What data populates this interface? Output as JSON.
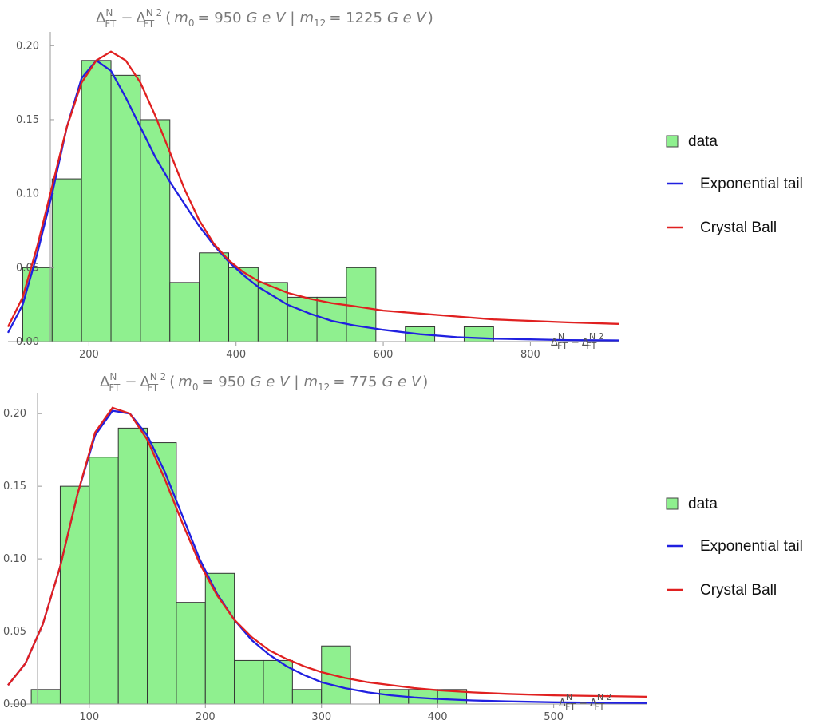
{
  "chart_data": [
    {
      "type": "bar",
      "title_parts": {
        "delta": "Δ",
        "sup_n": "N",
        "sub_ft": "FT",
        "minus": "−",
        "sup_n2": "N 2",
        "open": "(",
        "m0_sym": "m",
        "m0_sub": "0",
        "m0_val": "= 950",
        "unit": "G e V",
        "sep": "|",
        "m12_sym": "m",
        "m12_sub": "12",
        "m12_val": "= 1225",
        "close": ")"
      },
      "xlabel_parts": {
        "delta": "Δ",
        "sup_n": "N",
        "sub_ft": "FT",
        "minus": "−",
        "sup_n2": "N 2"
      },
      "xlim": [
        90,
        920
      ],
      "ylim": [
        0,
        0.205
      ],
      "xticks": [
        200,
        400,
        600,
        800
      ],
      "yticks": [
        "0.00",
        "0.05",
        "0.10",
        "0.15",
        "0.20"
      ],
      "bins": [
        {
          "x0": 110,
          "x1": 150,
          "value": 0.05
        },
        {
          "x0": 150,
          "x1": 190,
          "value": 0.11
        },
        {
          "x0": 190,
          "x1": 230,
          "value": 0.19
        },
        {
          "x0": 230,
          "x1": 270,
          "value": 0.18
        },
        {
          "x0": 270,
          "x1": 310,
          "value": 0.15
        },
        {
          "x0": 310,
          "x1": 350,
          "value": 0.04
        },
        {
          "x0": 350,
          "x1": 390,
          "value": 0.06
        },
        {
          "x0": 390,
          "x1": 430,
          "value": 0.05
        },
        {
          "x0": 430,
          "x1": 470,
          "value": 0.04
        },
        {
          "x0": 470,
          "x1": 510,
          "value": 0.03
        },
        {
          "x0": 510,
          "x1": 550,
          "value": 0.03
        },
        {
          "x0": 550,
          "x1": 590,
          "value": 0.05
        },
        {
          "x0": 590,
          "x1": 630,
          "value": 0.0
        },
        {
          "x0": 630,
          "x1": 670,
          "value": 0.01
        },
        {
          "x0": 670,
          "x1": 710,
          "value": 0.0
        },
        {
          "x0": 710,
          "x1": 750,
          "value": 0.01
        }
      ],
      "series": [
        {
          "name": "Exponential tail",
          "color": "#2020e0",
          "points": [
            [
              90,
              0.006
            ],
            [
              110,
              0.025
            ],
            [
              130,
              0.06
            ],
            [
              150,
              0.1
            ],
            [
              170,
              0.145
            ],
            [
              190,
              0.178
            ],
            [
              210,
              0.19
            ],
            [
              230,
              0.183
            ],
            [
              250,
              0.165
            ],
            [
              270,
              0.145
            ],
            [
              290,
              0.125
            ],
            [
              310,
              0.108
            ],
            [
              330,
              0.093
            ],
            [
              350,
              0.078
            ],
            [
              370,
              0.065
            ],
            [
              390,
              0.054
            ],
            [
              410,
              0.045
            ],
            [
              430,
              0.037
            ],
            [
              450,
              0.031
            ],
            [
              470,
              0.025
            ],
            [
              500,
              0.019
            ],
            [
              530,
              0.014
            ],
            [
              560,
              0.011
            ],
            [
              600,
              0.008
            ],
            [
              650,
              0.005
            ],
            [
              700,
              0.003
            ],
            [
              750,
              0.002
            ],
            [
              800,
              0.0015
            ],
            [
              850,
              0.001
            ],
            [
              920,
              0.0008
            ]
          ]
        },
        {
          "name": "Crystal Ball",
          "color": "#e02020",
          "points": [
            [
              90,
              0.01
            ],
            [
              110,
              0.03
            ],
            [
              130,
              0.065
            ],
            [
              150,
              0.105
            ],
            [
              170,
              0.145
            ],
            [
              190,
              0.175
            ],
            [
              210,
              0.19
            ],
            [
              230,
              0.196
            ],
            [
              250,
              0.19
            ],
            [
              270,
              0.175
            ],
            [
              290,
              0.153
            ],
            [
              310,
              0.128
            ],
            [
              330,
              0.103
            ],
            [
              350,
              0.082
            ],
            [
              370,
              0.066
            ],
            [
              390,
              0.055
            ],
            [
              410,
              0.047
            ],
            [
              430,
              0.041
            ],
            [
              450,
              0.037
            ],
            [
              470,
              0.033
            ],
            [
              500,
              0.029
            ],
            [
              530,
              0.026
            ],
            [
              560,
              0.024
            ],
            [
              600,
              0.021
            ],
            [
              650,
              0.019
            ],
            [
              700,
              0.017
            ],
            [
              750,
              0.015
            ],
            [
              800,
              0.014
            ],
            [
              850,
              0.013
            ],
            [
              920,
              0.012
            ]
          ]
        }
      ],
      "legend": [
        "data",
        "Exponential tail",
        "Crystal Ball"
      ],
      "legend_placement": "right",
      "colors": {
        "bar": "#8ff08f",
        "axis": "#999999"
      }
    },
    {
      "type": "bar",
      "title_parts": {
        "delta": "Δ",
        "sup_n": "N",
        "sub_ft": "FT",
        "minus": "−",
        "sup_n2": "N 2",
        "open": "(",
        "m0_sym": "m",
        "m0_sub": "0",
        "m0_val": "= 950",
        "unit": "G e V",
        "sep": "|",
        "m12_sym": "m",
        "m12_sub": "12",
        "m12_val": "= 775",
        "close": ")"
      },
      "xlabel_parts": {
        "delta": "Δ",
        "sup_n": "N",
        "sub_ft": "FT",
        "minus": "−",
        "sup_n2": "N 2"
      },
      "xlim": [
        30,
        580
      ],
      "ylim": [
        0,
        0.21
      ],
      "xticks": [
        100,
        200,
        300,
        400,
        500
      ],
      "yticks": [
        "0.00",
        "0.05",
        "0.10",
        "0.15",
        "0.20"
      ],
      "bins": [
        {
          "x0": 50,
          "x1": 75,
          "value": 0.01
        },
        {
          "x0": 75,
          "x1": 100,
          "value": 0.15
        },
        {
          "x0": 100,
          "x1": 125,
          "value": 0.17
        },
        {
          "x0": 125,
          "x1": 150,
          "value": 0.19
        },
        {
          "x0": 150,
          "x1": 175,
          "value": 0.18
        },
        {
          "x0": 175,
          "x1": 200,
          "value": 0.07
        },
        {
          "x0": 200,
          "x1": 225,
          "value": 0.09
        },
        {
          "x0": 225,
          "x1": 250,
          "value": 0.03
        },
        {
          "x0": 250,
          "x1": 275,
          "value": 0.03
        },
        {
          "x0": 275,
          "x1": 300,
          "value": 0.01
        },
        {
          "x0": 300,
          "x1": 325,
          "value": 0.04
        },
        {
          "x0": 325,
          "x1": 350,
          "value": 0.0
        },
        {
          "x0": 350,
          "x1": 375,
          "value": 0.01
        },
        {
          "x0": 375,
          "x1": 400,
          "value": 0.01
        },
        {
          "x0": 400,
          "x1": 425,
          "value": 0.01
        }
      ],
      "series": [
        {
          "name": "Exponential tail",
          "color": "#2020e0",
          "points": [
            [
              30,
              0.013
            ],
            [
              45,
              0.028
            ],
            [
              60,
              0.055
            ],
            [
              75,
              0.095
            ],
            [
              90,
              0.145
            ],
            [
              105,
              0.185
            ],
            [
              120,
              0.202
            ],
            [
              135,
              0.2
            ],
            [
              150,
              0.185
            ],
            [
              165,
              0.16
            ],
            [
              180,
              0.13
            ],
            [
              195,
              0.1
            ],
            [
              210,
              0.076
            ],
            [
              225,
              0.058
            ],
            [
              240,
              0.044
            ],
            [
              255,
              0.034
            ],
            [
              270,
              0.026
            ],
            [
              285,
              0.02
            ],
            [
              300,
              0.015
            ],
            [
              320,
              0.011
            ],
            [
              340,
              0.008
            ],
            [
              360,
              0.006
            ],
            [
              380,
              0.0045
            ],
            [
              400,
              0.0035
            ],
            [
              430,
              0.0025
            ],
            [
              460,
              0.0018
            ],
            [
              500,
              0.0012
            ],
            [
              540,
              0.0009
            ],
            [
              580,
              0.0007
            ]
          ]
        },
        {
          "name": "Crystal Ball",
          "color": "#e02020",
          "points": [
            [
              30,
              0.013
            ],
            [
              45,
              0.028
            ],
            [
              60,
              0.055
            ],
            [
              75,
              0.095
            ],
            [
              90,
              0.145
            ],
            [
              105,
              0.187
            ],
            [
              120,
              0.204
            ],
            [
              135,
              0.2
            ],
            [
              150,
              0.182
            ],
            [
              165,
              0.155
            ],
            [
              180,
              0.125
            ],
            [
              195,
              0.097
            ],
            [
              210,
              0.075
            ],
            [
              225,
              0.058
            ],
            [
              240,
              0.046
            ],
            [
              255,
              0.037
            ],
            [
              270,
              0.031
            ],
            [
              285,
              0.026
            ],
            [
              300,
              0.022
            ],
            [
              320,
              0.018
            ],
            [
              340,
              0.015
            ],
            [
              360,
              0.013
            ],
            [
              380,
              0.011
            ],
            [
              400,
              0.0095
            ],
            [
              430,
              0.008
            ],
            [
              460,
              0.007
            ],
            [
              500,
              0.006
            ],
            [
              540,
              0.0055
            ],
            [
              580,
              0.005
            ]
          ]
        }
      ],
      "legend": [
        "data",
        "Exponential tail",
        "Crystal Ball"
      ],
      "legend_placement": "right",
      "colors": {
        "bar": "#8ff08f",
        "axis": "#999999"
      }
    }
  ]
}
